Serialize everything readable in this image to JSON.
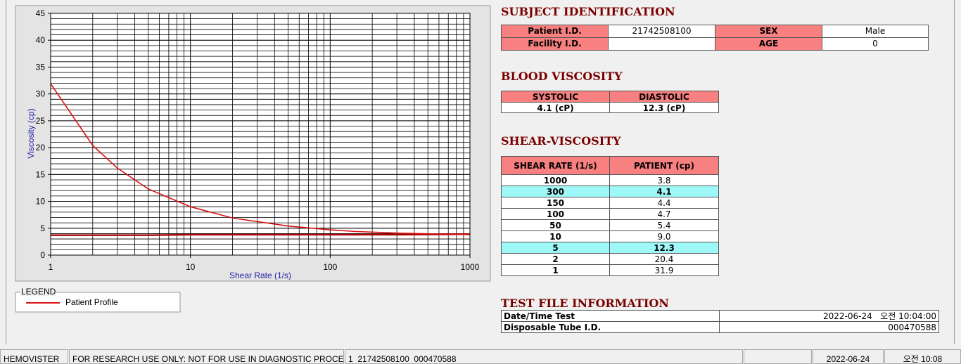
{
  "chart_data": {
    "type": "line",
    "x_label": "Shear Rate (1/s)",
    "y_label": "Viscosity (cp)",
    "x_scale": "log",
    "xlim": [
      1,
      1000
    ],
    "xticks": [
      1,
      10,
      100,
      1000
    ],
    "ylim": [
      0,
      45
    ],
    "yticks": [
      0,
      5,
      10,
      15,
      20,
      25,
      30,
      35,
      40,
      45
    ],
    "grid": true,
    "x": [
      1,
      2,
      3,
      5,
      10,
      20,
      50,
      100,
      150,
      300,
      1000
    ],
    "series": [
      {
        "name": "Patient Profile",
        "color": "#d81010",
        "values": [
          31.9,
          20.4,
          16.2,
          12.3,
          9.0,
          6.9,
          5.4,
          4.7,
          4.4,
          4.1,
          3.8
        ]
      },
      {
        "color": "#a80000",
        "values": [
          3.7,
          3.7,
          3.7,
          3.7,
          3.8,
          3.8,
          3.8,
          3.8,
          3.8,
          3.8,
          3.9
        ]
      }
    ]
  },
  "legend": {
    "title": "LEGEND"
  },
  "subject": {
    "title": "SUBJECT IDENTIFICATION",
    "patient_id_label": "Patient I.D.",
    "patient_id": "21742508100",
    "sex_label": "SEX",
    "sex": "Male",
    "facility_id_label": "Facility I.D.",
    "age_label": "AGE",
    "age": "0"
  },
  "blood_viscosity": {
    "title": "BLOOD VISCOSITY",
    "headers": [
      "SYSTOLIC",
      "DIASTOLIC"
    ],
    "values": [
      "4.1 (cP)",
      "12.3 (cP)"
    ]
  },
  "shear_viscosity": {
    "title": "SHEAR-VISCOSITY",
    "headers": [
      "SHEAR RATE (1/s)",
      "PATIENT (cp)"
    ],
    "rows": [
      [
        "1000",
        "3.8"
      ],
      [
        "300",
        "4.1"
      ],
      [
        "150",
        "4.4"
      ],
      [
        "100",
        "4.7"
      ],
      [
        "50",
        "5.4"
      ],
      [
        "10",
        "9.0"
      ],
      [
        "5",
        "12.3"
      ],
      [
        "2",
        "20.4"
      ],
      [
        "1",
        "31.9"
      ]
    ],
    "highlight_rows": [
      1,
      6
    ]
  },
  "test_file": {
    "title": "TEST FILE INFORMATION",
    "rows": [
      [
        "Date/Time Test",
        "2022-06-24   오전 10:04:00"
      ],
      [
        "Disposable Tube I.D.",
        "000470588"
      ]
    ]
  },
  "status_bar": {
    "fields": [
      "HEMOVISTER",
      "FOR RESEARCH USE ONLY: NOT FOR USE IN DIAGNOSTIC PROCEDURES",
      "1  21742508100  000470588",
      "2022-06-24",
      "오전 10:08"
    ]
  }
}
